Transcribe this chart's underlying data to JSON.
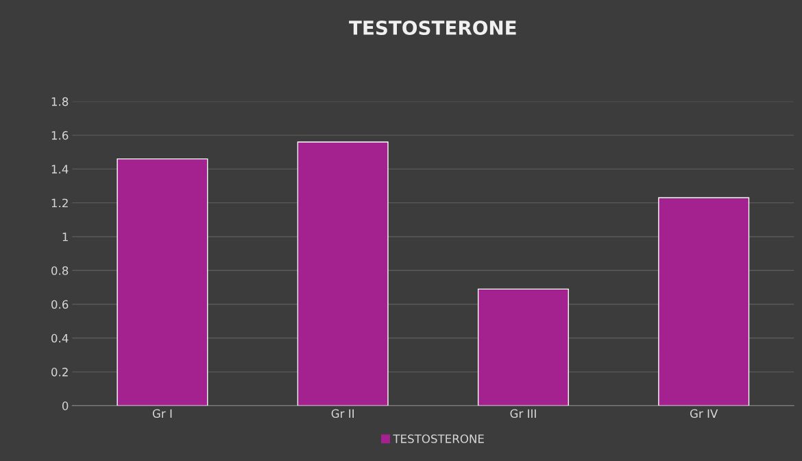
{
  "chart_data": {
    "type": "bar",
    "title": "TESTOSTERONE",
    "categories": [
      "Gr I",
      "Gr II",
      "Gr III",
      "Gr IV"
    ],
    "series": [
      {
        "name": "TESTOSTERONE",
        "color": "#a3228f",
        "values": [
          1.46,
          1.56,
          0.69,
          1.23
        ]
      }
    ],
    "ylim": [
      0,
      1.8
    ],
    "yticks": [
      0,
      0.2,
      0.4,
      0.6,
      0.8,
      1,
      1.2,
      1.4,
      1.6,
      1.8
    ],
    "grid": "y",
    "legend": "bottom"
  }
}
